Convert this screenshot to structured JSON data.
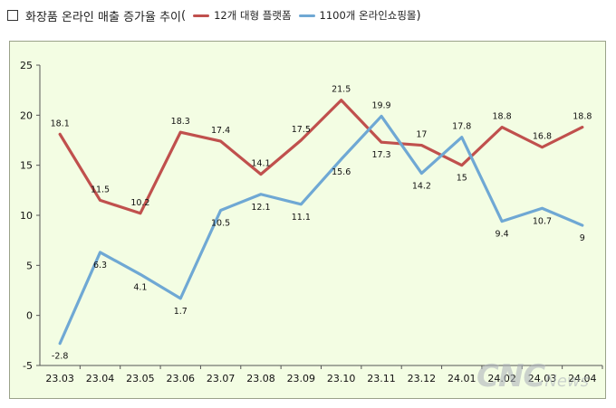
{
  "header": {
    "title": "화장품 온라인 매출 증가율 추이",
    "paren_open": "(",
    "paren_close": ")"
  },
  "colors": {
    "series_a": "#c0504d",
    "series_b": "#6fa8d4",
    "background": "#f3fde3"
  },
  "chart_data": {
    "type": "line",
    "title": "화장품 온라인 매출 증가율 추이",
    "x": [
      "23.03",
      "23.04",
      "23.05",
      "23.06",
      "23.07",
      "23.08",
      "23.09",
      "23.10",
      "23.11",
      "23.12",
      "24.01",
      "24.02",
      "24.03",
      "24.04"
    ],
    "ylim": [
      -5,
      25
    ],
    "yticks": [
      -5,
      0,
      5,
      10,
      15,
      20,
      25
    ],
    "grid": false,
    "legend_position": "top",
    "series": [
      {
        "name": "12개 대형 플랫폼",
        "color": "#c0504d",
        "values": [
          18.1,
          11.5,
          10.2,
          18.3,
          17.4,
          14.1,
          17.5,
          21.5,
          17.3,
          17,
          15,
          18.8,
          16.8,
          18.8
        ],
        "labels": [
          "18.1",
          "11.5",
          "10.2",
          "18.3",
          "17.4",
          "14.1",
          "17.5",
          "21.5",
          "17.3",
          "17",
          "15",
          "18.8",
          "16.8",
          "18.8"
        ]
      },
      {
        "name": "1100개 온라인쇼핑몰",
        "color": "#6fa8d4",
        "values": [
          -2.8,
          6.3,
          4.1,
          1.7,
          10.5,
          12.1,
          11.1,
          15.6,
          19.9,
          14.2,
          17.8,
          9.4,
          10.7,
          9
        ],
        "labels": [
          "-2.8",
          "6.3",
          "4.1",
          "1.7",
          "10.5",
          "12.1",
          "11.1",
          "15.6",
          "19.9",
          "14.2",
          "17.8",
          "9.4",
          "10.7",
          "9"
        ]
      }
    ]
  },
  "watermark": {
    "brand": "CNC",
    "suffix": "News"
  }
}
